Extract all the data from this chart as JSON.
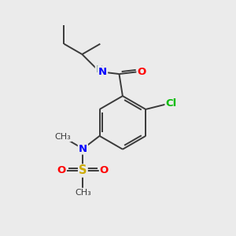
{
  "background_color": "#ebebeb",
  "atom_colors": {
    "C": "#3a3a3a",
    "N": "#0000ff",
    "O": "#ff0000",
    "S": "#ccaa00",
    "Cl": "#00bb00",
    "H": "#7a9a9a"
  },
  "bond_color": "#3a3a3a",
  "bond_width": 1.4,
  "figsize": [
    3.0,
    3.0
  ],
  "dpi": 100
}
